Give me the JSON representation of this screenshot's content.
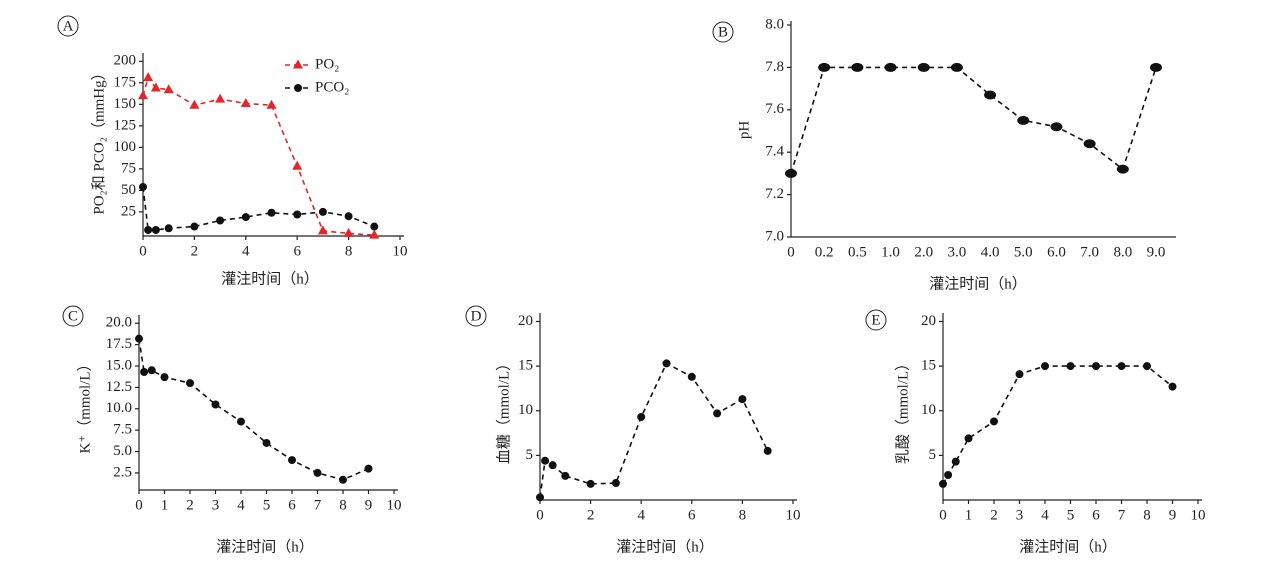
{
  "chart_data": [
    {
      "type": "line",
      "label": "A",
      "x": [
        0,
        0.2,
        0.5,
        1,
        2,
        3,
        4,
        5,
        6,
        7,
        8,
        9
      ],
      "series": [
        {
          "name": "PO₂",
          "color": "#e3262b",
          "marker": "triangle",
          "values": [
            160,
            181,
            169,
            167,
            149,
            156,
            151,
            149,
            78,
            3,
            0,
            -2
          ]
        },
        {
          "name": "PCO₂",
          "color": "#111111",
          "marker": "circle",
          "values": [
            54,
            4,
            4,
            6,
            8,
            15,
            19,
            24,
            22,
            25,
            20,
            8
          ]
        }
      ],
      "xlim": [
        0,
        10
      ],
      "xticks": [
        0,
        2,
        4,
        6,
        8,
        10
      ],
      "ylim": [
        -3,
        205
      ],
      "yticks": [
        25,
        50,
        75,
        100,
        125,
        150,
        175,
        200
      ],
      "xlabel": "灌注时间（h）",
      "ylabel": "PO₂和 PCO₂（mmHg）",
      "linestyle": "dashed",
      "legend": "upper right"
    },
    {
      "type": "line",
      "label": "B",
      "categories": [
        "0",
        "0.2",
        "0.5",
        "1.0",
        "2.0",
        "3.0",
        "4.0",
        "5.0",
        "6.0",
        "7.0",
        "8.0",
        "9.0"
      ],
      "values": [
        7.3,
        7.8,
        7.8,
        7.8,
        7.8,
        7.8,
        7.67,
        7.55,
        7.52,
        7.44,
        7.32,
        7.8
      ],
      "color": "#111111",
      "marker": "ellipse",
      "ylim": [
        7,
        8
      ],
      "yticks": [
        {
          "value": 7,
          "label": "7.0"
        },
        7.2,
        7.4,
        7.6,
        7.8,
        {
          "value": 8,
          "label": "8.0"
        }
      ],
      "xlabel": "灌注时间（h）",
      "ylabel": "pH",
      "linestyle": "dashed"
    },
    {
      "type": "line",
      "label": "C",
      "x": [
        0,
        0.2,
        0.5,
        1,
        2,
        3,
        4,
        5,
        6,
        7,
        8,
        9
      ],
      "values": [
        18.2,
        14.3,
        14.5,
        13.7,
        13.0,
        10.5,
        8.5,
        6.0,
        4.0,
        2.5,
        1.7,
        3.0
      ],
      "color": "#111111",
      "marker": "circle",
      "xlim": [
        0,
        10
      ],
      "xticks": [
        0,
        1,
        2,
        3,
        4,
        5,
        6,
        7,
        8,
        9,
        10
      ],
      "ylim": [
        0.5,
        20.5
      ],
      "yticks": [
        2.5,
        {
          "value": 5,
          "label": "5.0"
        },
        7.5,
        {
          "value": 10,
          "label": "10.0"
        },
        12.5,
        {
          "value": 15,
          "label": "15.0"
        },
        17.5,
        {
          "value": 20,
          "label": "20.0"
        }
      ],
      "xlabel": "灌注时间（h）",
      "ylabel": "K⁺（mmol/L）",
      "linestyle": "dashed"
    },
    {
      "type": "line",
      "label": "D",
      "x": [
        0,
        0.2,
        0.5,
        1,
        2,
        3,
        4,
        5,
        6,
        7,
        8,
        9
      ],
      "values": [
        0.3,
        4.4,
        3.9,
        2.7,
        1.8,
        1.9,
        9.3,
        15.3,
        13.8,
        9.7,
        11.3,
        5.5
      ],
      "color": "#111111",
      "marker": "circle",
      "xlim": [
        0,
        10
      ],
      "xticks": [
        0,
        2,
        4,
        6,
        8,
        10
      ],
      "ylim": [
        0,
        20.5
      ],
      "yticks": [
        5,
        10,
        15,
        20
      ],
      "xlabel": "灌注时间（h）",
      "ylabel": "血糖（mmol/L）",
      "linestyle": "dashed"
    },
    {
      "type": "line",
      "label": "E",
      "x": [
        0,
        0.2,
        0.5,
        1,
        2,
        3,
        4,
        5,
        6,
        7,
        8,
        9
      ],
      "values": [
        1.8,
        2.8,
        4.3,
        6.9,
        8.8,
        14.1,
        15,
        15,
        15,
        15,
        15,
        12.7
      ],
      "color": "#111111",
      "marker": "circle",
      "xlim": [
        0,
        10
      ],
      "xticks": [
        0,
        1,
        2,
        3,
        4,
        5,
        6,
        7,
        8,
        9,
        10
      ],
      "ylim": [
        0,
        20.5
      ],
      "yticks": [
        5,
        10,
        15,
        20
      ],
      "xlabel": "灌注时间（h）",
      "ylabel": "乳酸（mmol/L）",
      "linestyle": "dashed"
    }
  ]
}
